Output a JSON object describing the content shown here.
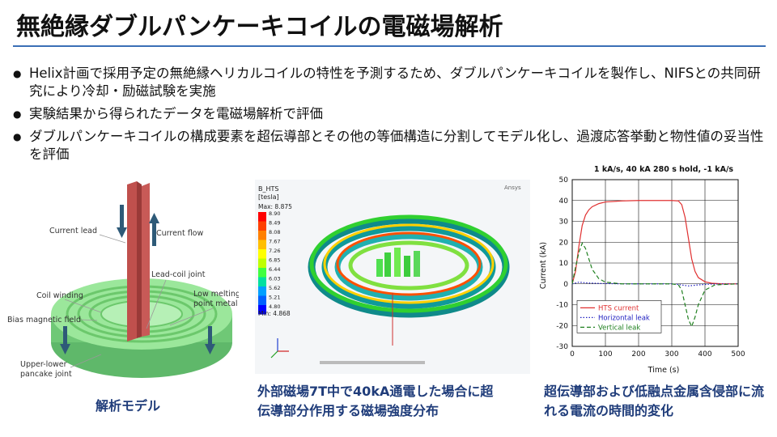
{
  "slide": {
    "title": "無絶縁ダブルパンケーキコイルの電磁場解析",
    "bullets": [
      "Helix計画で採用予定の無絶縁ヘリカルコイルの特性を予測するため、ダブルパンケーキコイルを製作し、NIFSとの共同研究により冷却・励磁試験を実施",
      "実験結果から得られたデータを電磁場解析で評価",
      "ダブルパンケーキコイルの構成要素を超伝導部とその他の等価構造に分割してモデル化し、過渡応答挙動と物性値の妥当性を評価"
    ]
  },
  "model": {
    "labels": {
      "current_lead": "Current lead",
      "current_flow": "Current flow",
      "lead_coil_joint": "Lead-coil joint",
      "coil_winding": "Coil winding",
      "low_melting": "Low melting\npoint metal",
      "bias_field": "Bias magnetic field",
      "upper_lower": "Upper-lower\npancake joint"
    },
    "caption": "解析モデル",
    "colors": {
      "lead": "#c0504d",
      "ring": "#7fd67f",
      "arrow": "#2e5a78"
    }
  },
  "field": {
    "legend_title": "B_HTS",
    "legend_unit": "[tesla]",
    "max_label": "Max: 8.875",
    "min_label": "Min: 4.868",
    "legend_values": [
      "8.90",
      "8.49",
      "8.08",
      "7.67",
      "7.26",
      "6.85",
      "6.44",
      "6.03",
      "5.62",
      "5.21",
      "4.80"
    ],
    "legend_colors": [
      "#ff0000",
      "#ff4000",
      "#ff8000",
      "#ffbf00",
      "#ffff00",
      "#bfff00",
      "#40ff40",
      "#00e0a0",
      "#00a0ff",
      "#0060ff",
      "#0000ff"
    ],
    "logo": "Ansys",
    "caption": "外部磁場7T中で40kA通電した場合に超伝導部分作用する磁場強度分布"
  },
  "chart_data": {
    "type": "line",
    "title": "1 kA/s, 40 kA 280 s hold, -1 kA/s",
    "xlabel": "Time (s)",
    "ylabel": "Current (kA)",
    "xlim": [
      0,
      500
    ],
    "ylim": [
      -30,
      50
    ],
    "xticks": [
      0,
      100,
      200,
      300,
      400,
      500
    ],
    "yticks": [
      -30,
      -20,
      -10,
      0,
      10,
      20,
      30,
      40,
      50
    ],
    "grid": true,
    "legend_position": "bottom-left",
    "series": [
      {
        "name": "HTS current",
        "color": "#e03030",
        "dash": "solid",
        "points": [
          [
            -10,
            0
          ],
          [
            0,
            0
          ],
          [
            10,
            6
          ],
          [
            20,
            18
          ],
          [
            30,
            28
          ],
          [
            40,
            33
          ],
          [
            50,
            35.5
          ],
          [
            60,
            37
          ],
          [
            80,
            38.5
          ],
          [
            100,
            39.3
          ],
          [
            150,
            39.8
          ],
          [
            200,
            40
          ],
          [
            300,
            40
          ],
          [
            320,
            39.8
          ],
          [
            330,
            38
          ],
          [
            340,
            32
          ],
          [
            350,
            22
          ],
          [
            360,
            12
          ],
          [
            370,
            6
          ],
          [
            380,
            3
          ],
          [
            400,
            1
          ],
          [
            420,
            0.3
          ],
          [
            450,
            0
          ],
          [
            500,
            0
          ]
        ]
      },
      {
        "name": "Horizontal leak",
        "color": "#2020c0",
        "dash": "dotted",
        "points": [
          [
            -10,
            0
          ],
          [
            0,
            0
          ],
          [
            20,
            0.8
          ],
          [
            40,
            0.5
          ],
          [
            80,
            0.2
          ],
          [
            150,
            0
          ],
          [
            300,
            0
          ],
          [
            320,
            -0.3
          ],
          [
            350,
            -1
          ],
          [
            380,
            -0.5
          ],
          [
            420,
            -0.1
          ],
          [
            500,
            0
          ]
        ]
      },
      {
        "name": "Vertical leak",
        "color": "#208020",
        "dash": "dashed",
        "points": [
          [
            -10,
            0
          ],
          [
            0,
            0
          ],
          [
            10,
            8
          ],
          [
            20,
            15
          ],
          [
            30,
            19.5
          ],
          [
            40,
            17
          ],
          [
            50,
            12
          ],
          [
            60,
            7
          ],
          [
            80,
            2.5
          ],
          [
            100,
            0.8
          ],
          [
            150,
            0
          ],
          [
            300,
            0
          ],
          [
            320,
            -0.5
          ],
          [
            330,
            -3
          ],
          [
            340,
            -10
          ],
          [
            350,
            -17
          ],
          [
            360,
            -20.5
          ],
          [
            370,
            -16
          ],
          [
            380,
            -10
          ],
          [
            400,
            -3
          ],
          [
            430,
            -0.5
          ],
          [
            500,
            0
          ]
        ]
      }
    ]
  },
  "chart_caption": "超伝導部および低融点金属含侵部に流れる電流の時間的変化"
}
